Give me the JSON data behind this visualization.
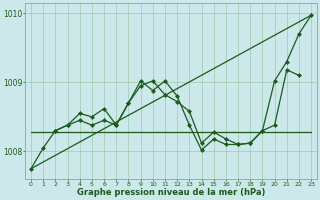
{
  "background_color": "#cce8ea",
  "grid_color": "#6aab6a",
  "line_color": "#1a5c1a",
  "title": "Graphe pression niveau de la mer (hPa)",
  "xlim": [
    -0.5,
    23.5
  ],
  "ylim": [
    1007.6,
    1010.15
  ],
  "yticks": [
    1008,
    1009,
    1010
  ],
  "xticks": [
    0,
    1,
    2,
    3,
    4,
    5,
    6,
    7,
    8,
    9,
    10,
    11,
    12,
    13,
    14,
    15,
    16,
    17,
    18,
    19,
    20,
    21,
    22,
    23
  ],
  "series": [
    {
      "x": [
        0,
        23
      ],
      "y": [
        1007.75,
        1009.97
      ],
      "marker": null,
      "linewidth": 0.9,
      "linestyle": "-"
    },
    {
      "x": [
        0,
        23
      ],
      "y": [
        1008.28,
        1008.28
      ],
      "marker": null,
      "linewidth": 0.9,
      "linestyle": "-"
    },
    {
      "x": [
        0,
        1,
        2,
        3,
        4,
        5,
        6,
        7,
        8,
        9,
        10,
        11,
        12,
        13,
        14,
        15,
        16,
        17,
        18,
        19,
        20,
        21,
        22,
        23
      ],
      "y": [
        1007.75,
        1008.05,
        1008.3,
        1008.38,
        1008.45,
        1008.38,
        1008.45,
        1008.38,
        1008.7,
        1009.02,
        1008.88,
        1009.02,
        1008.8,
        1008.38,
        1008.02,
        1008.18,
        1008.1,
        1008.1,
        1008.12,
        1008.3,
        1009.02,
        1009.3,
        1009.7,
        1009.97
      ],
      "marker": "D",
      "markersize": 2.0,
      "linewidth": 0.9,
      "linestyle": "-"
    },
    {
      "x": [
        2,
        3,
        4,
        5,
        6,
        7,
        8,
        9,
        10,
        11,
        12,
        13,
        14,
        15,
        16,
        17,
        18,
        19,
        20,
        21,
        22
      ],
      "y": [
        1008.3,
        1008.38,
        1008.55,
        1008.5,
        1008.62,
        1008.38,
        1008.7,
        1008.95,
        1009.02,
        1008.82,
        1008.72,
        1008.58,
        1008.12,
        1008.28,
        1008.18,
        1008.1,
        1008.12,
        1008.3,
        1008.38,
        1009.18,
        1009.1
      ],
      "marker": "D",
      "markersize": 2.0,
      "linewidth": 0.9,
      "linestyle": "-"
    }
  ]
}
